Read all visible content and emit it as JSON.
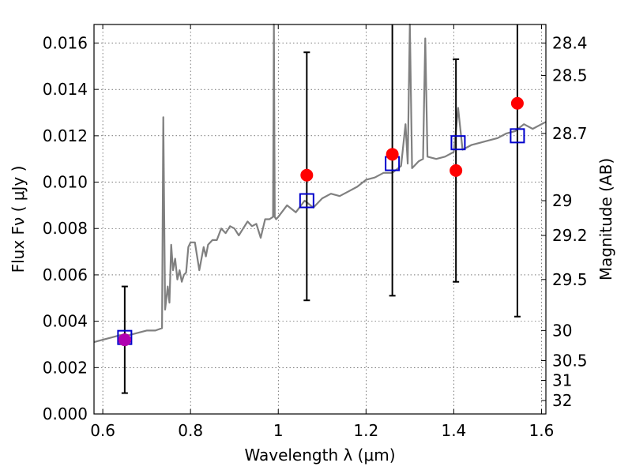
{
  "chart_data": {
    "type": "scatter",
    "title": "",
    "xlabel": "Wavelength  λ (μm)",
    "ylabel": "Flux  Fν ( μJy )",
    "y2label": "Magnitude (AB)",
    "xlim": [
      0.58,
      1.61
    ],
    "ylim": [
      0.0,
      0.0168
    ],
    "grid": true,
    "x_ticks": [
      0.6,
      0.8,
      1.0,
      1.2,
      1.4,
      1.6
    ],
    "x_tick_labels": [
      "0.6",
      "0.8",
      "1",
      "1.2",
      "1.4",
      "1.6"
    ],
    "y_ticks": [
      0.0,
      0.002,
      0.004,
      0.006,
      0.008,
      0.01,
      0.012,
      0.014,
      0.016
    ],
    "y_tick_labels": [
      "0.000",
      "0.002",
      "0.004",
      "0.006",
      "0.008",
      "0.010",
      "0.012",
      "0.014",
      "0.016"
    ],
    "y2_ticks": [
      {
        "label": "28.4",
        "flux": 0.016
      },
      {
        "label": "28.5",
        "flux": 0.0146
      },
      {
        "label": "28.7",
        "flux": 0.0121
      },
      {
        "label": "29",
        "flux": 0.0092
      },
      {
        "label": "29.2",
        "flux": 0.0077
      },
      {
        "label": "29.5",
        "flux": 0.0058
      },
      {
        "label": "30",
        "flux": 0.0036
      },
      {
        "label": "30.5",
        "flux": 0.0023
      },
      {
        "label": "31",
        "flux": 0.00145
      },
      {
        "label": "32",
        "flux": 0.00058
      }
    ],
    "series": [
      {
        "kind": "model-spectrum",
        "color": "#808080",
        "x": [
          0.58,
          0.6,
          0.62,
          0.64,
          0.66,
          0.68,
          0.7,
          0.72,
          0.735,
          0.738,
          0.742,
          0.748,
          0.752,
          0.756,
          0.76,
          0.765,
          0.77,
          0.775,
          0.78,
          0.785,
          0.79,
          0.795,
          0.8,
          0.81,
          0.82,
          0.83,
          0.835,
          0.84,
          0.845,
          0.85,
          0.86,
          0.87,
          0.88,
          0.89,
          0.9,
          0.91,
          0.92,
          0.93,
          0.94,
          0.95,
          0.96,
          0.97,
          0.98,
          0.988,
          0.99,
          0.992,
          0.995,
          1.0,
          1.02,
          1.04,
          1.06,
          1.08,
          1.1,
          1.12,
          1.14,
          1.16,
          1.18,
          1.2,
          1.22,
          1.24,
          1.26,
          1.28,
          1.29,
          1.295,
          1.3,
          1.305,
          1.31,
          1.32,
          1.33,
          1.335,
          1.34,
          1.36,
          1.38,
          1.4,
          1.41,
          1.42,
          1.44,
          1.46,
          1.48,
          1.5,
          1.52,
          1.54,
          1.56,
          1.58,
          1.6,
          1.61
        ],
        "y": [
          0.0031,
          0.0032,
          0.0033,
          0.0034,
          0.0034,
          0.0035,
          0.0036,
          0.0036,
          0.0037,
          0.0128,
          0.0045,
          0.0055,
          0.0048,
          0.0073,
          0.0062,
          0.0067,
          0.0058,
          0.0062,
          0.0057,
          0.006,
          0.0061,
          0.0072,
          0.0074,
          0.0074,
          0.0062,
          0.0072,
          0.0068,
          0.0073,
          0.0074,
          0.0075,
          0.0075,
          0.008,
          0.0078,
          0.0081,
          0.008,
          0.0077,
          0.008,
          0.0083,
          0.0081,
          0.0082,
          0.0076,
          0.0084,
          0.0084,
          0.0085,
          0.0168,
          0.0085,
          0.0084,
          0.0085,
          0.009,
          0.0087,
          0.0092,
          0.0089,
          0.0093,
          0.0095,
          0.0094,
          0.0096,
          0.0098,
          0.0101,
          0.0102,
          0.0104,
          0.0104,
          0.0107,
          0.0125,
          0.0108,
          0.0168,
          0.0106,
          0.0107,
          0.0109,
          0.011,
          0.0162,
          0.0111,
          0.011,
          0.0111,
          0.0113,
          0.0132,
          0.0114,
          0.0116,
          0.0117,
          0.0118,
          0.0119,
          0.0121,
          0.0122,
          0.0125,
          0.0123,
          0.0125,
          0.0126
        ]
      },
      {
        "kind": "observed-points",
        "color": "#ff0000",
        "x": [
          0.65,
          1.065,
          1.26,
          1.405,
          1.545
        ],
        "y": [
          0.0032,
          0.0103,
          0.0112,
          0.0105,
          0.0134
        ],
        "yerr_low": [
          0.0009,
          0.0049,
          0.0051,
          0.0057,
          0.0042
        ],
        "yerr_high": [
          0.0055,
          0.0156,
          0.0168,
          0.0153,
          0.0168
        ]
      },
      {
        "kind": "model-band-points",
        "color": "#0000cc",
        "x": [
          0.65,
          1.065,
          1.26,
          1.41,
          1.545
        ],
        "y": [
          0.0033,
          0.0092,
          0.0108,
          0.0117,
          0.012
        ]
      }
    ],
    "highlight_point": {
      "x": 0.65,
      "y": 0.0032,
      "color": "#b000b0"
    }
  }
}
